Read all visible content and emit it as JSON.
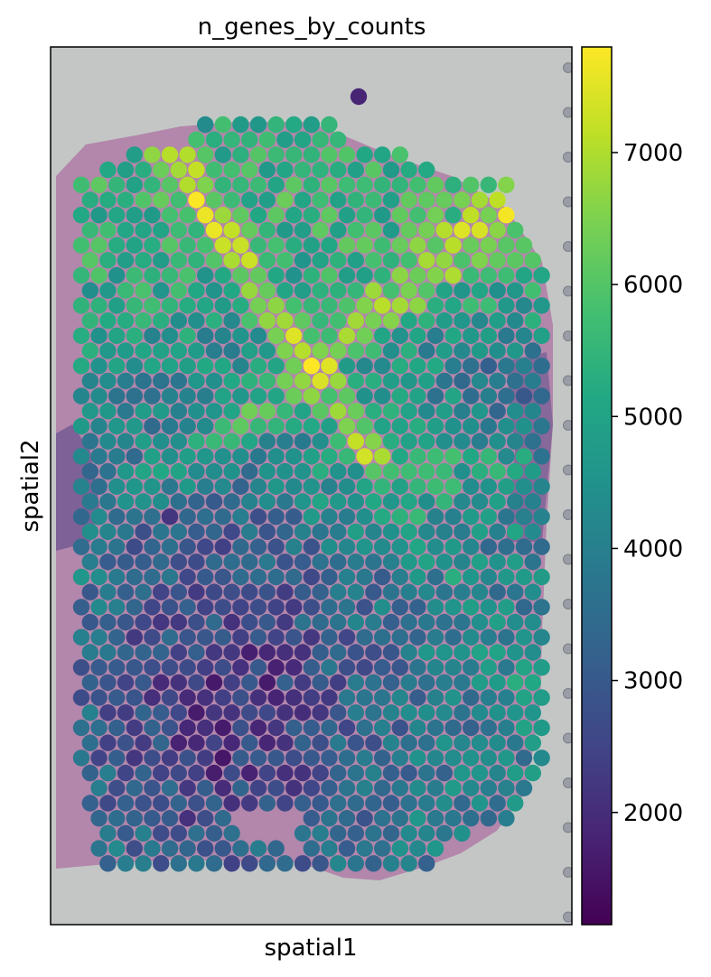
{
  "chart_data": {
    "type": "scatter",
    "title": "n_genes_by_counts",
    "xlabel": "spatial1",
    "ylabel": "spatial2",
    "colormap": "viridis",
    "colorbar": {
      "range": [
        1150,
        7800
      ],
      "ticks": [
        2000,
        3000,
        4000,
        5000,
        6000,
        7000
      ],
      "tick_labels": [
        "2000",
        "3000",
        "4000",
        "5000",
        "6000",
        "7000"
      ]
    },
    "background": "H&E tissue image",
    "grid": false,
    "spots_note": "Visium spot array; values vary spatially: high (~5000-7800) in upper/middle region, low (~1200-3500) in lower-left region"
  }
}
